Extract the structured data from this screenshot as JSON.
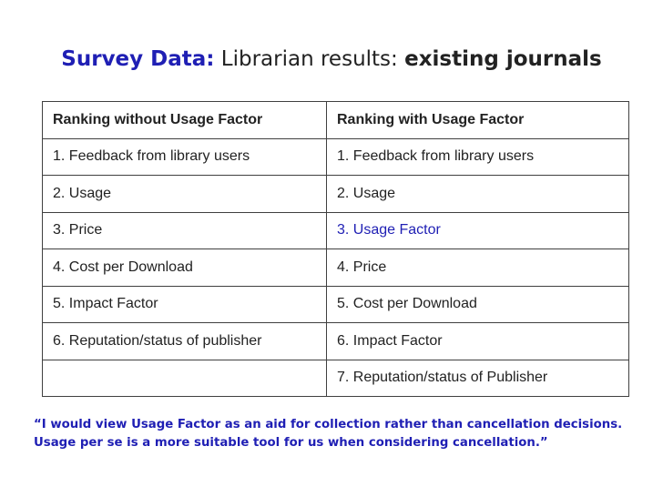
{
  "title": {
    "accent": "Survey Data:",
    "middle": "Librarian results:",
    "bold": "existing journals"
  },
  "table": {
    "headers": [
      "Ranking without Usage Factor",
      "Ranking with Usage Factor"
    ],
    "rows": [
      [
        "1. Feedback from library users",
        "1. Feedback from library users"
      ],
      [
        "2. Usage",
        "2. Usage"
      ],
      [
        "3. Price",
        "3. Usage Factor"
      ],
      [
        "4. Cost per Download",
        "4. Price"
      ],
      [
        "5. Impact Factor",
        "5. Cost per Download"
      ],
      [
        "6. Reputation/status of publisher",
        "6. Impact Factor"
      ],
      [
        "",
        "7. Reputation/status of Publisher"
      ]
    ]
  },
  "quote": {
    "line1": "“I would view Usage Factor as an aid for collection rather than cancellation decisions.",
    "line2": "Usage per se is a more suitable tool for us when considering cancellation.”"
  },
  "colors": {
    "accent": "#1f1fb4",
    "text": "#222222",
    "border": "#404040"
  }
}
